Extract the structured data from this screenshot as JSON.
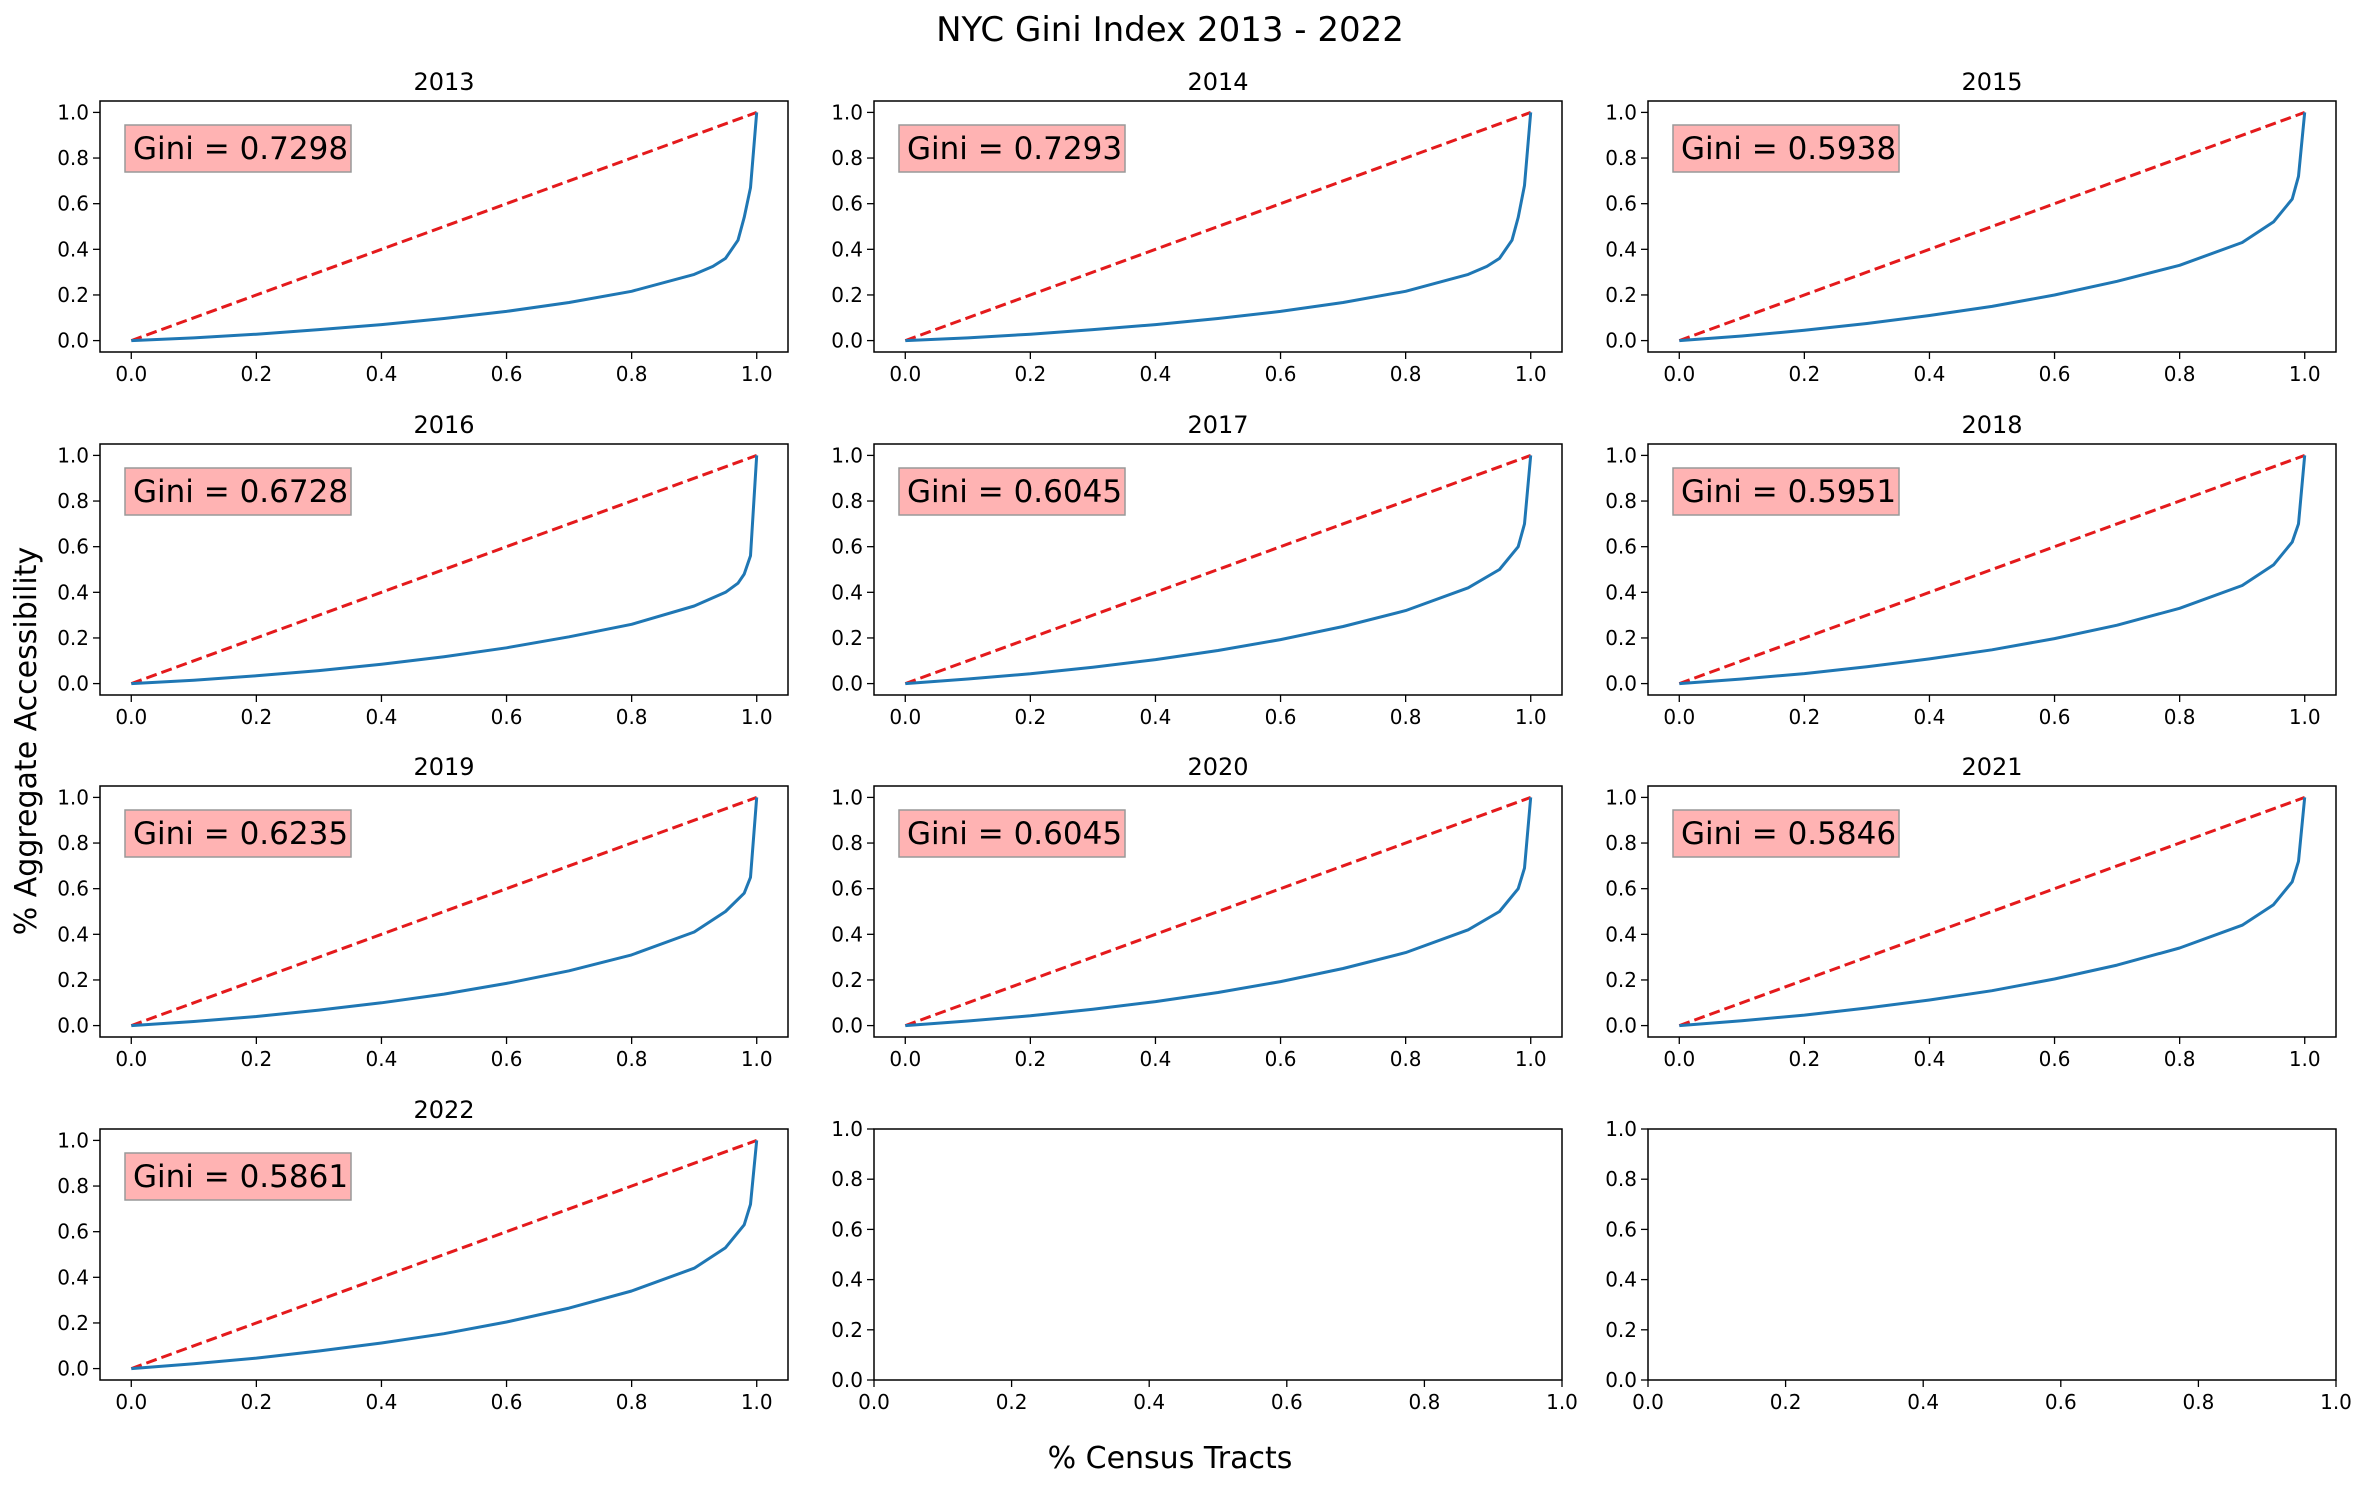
{
  "figure": {
    "title": "NYC Gini Index 2013 - 2022",
    "xlabel": "% Census Tracts",
    "ylabel": "% Aggregate Accessibility"
  },
  "colors": {
    "lorenz_curve": "#1f77b4",
    "equality_line": "#e41a1c",
    "gini_box_fill": "#ffb3b3",
    "gini_box_edge": "#999999",
    "axes": "#000000"
  },
  "chart_data": [
    {
      "type": "line",
      "title": "2013",
      "annotation": "Gini = 0.7298",
      "xlim": [
        -0.05,
        1.05
      ],
      "ylim": [
        -0.05,
        1.05
      ],
      "x_ticks": [
        "0.0",
        "0.2",
        "0.4",
        "0.6",
        "0.8",
        "1.0"
      ],
      "y_ticks": [
        "0.0",
        "0.2",
        "0.4",
        "0.6",
        "0.8",
        "1.0"
      ],
      "series": [
        {
          "role": "equality",
          "style": "dashed",
          "x": [
            0,
            1
          ],
          "y": [
            0,
            1
          ]
        },
        {
          "role": "lorenz",
          "x": [
            0,
            0.1,
            0.2,
            0.3,
            0.4,
            0.5,
            0.6,
            0.7,
            0.8,
            0.9,
            0.93,
            0.95,
            0.97,
            0.98,
            0.99,
            1.0
          ],
          "y": [
            0,
            0.012,
            0.028,
            0.048,
            0.07,
            0.097,
            0.128,
            0.167,
            0.216,
            0.29,
            0.325,
            0.36,
            0.44,
            0.54,
            0.67,
            1.0
          ]
        }
      ]
    },
    {
      "type": "line",
      "title": "2014",
      "annotation": "Gini = 0.7293",
      "xlim": [
        -0.05,
        1.05
      ],
      "ylim": [
        -0.05,
        1.05
      ],
      "x_ticks": [
        "0.0",
        "0.2",
        "0.4",
        "0.6",
        "0.8",
        "1.0"
      ],
      "y_ticks": [
        "0.0",
        "0.2",
        "0.4",
        "0.6",
        "0.8",
        "1.0"
      ],
      "series": [
        {
          "role": "equality",
          "style": "dashed",
          "x": [
            0,
            1
          ],
          "y": [
            0,
            1
          ]
        },
        {
          "role": "lorenz",
          "x": [
            0,
            0.1,
            0.2,
            0.3,
            0.4,
            0.5,
            0.6,
            0.7,
            0.8,
            0.9,
            0.93,
            0.95,
            0.97,
            0.98,
            0.99,
            1.0
          ],
          "y": [
            0,
            0.012,
            0.028,
            0.048,
            0.07,
            0.097,
            0.128,
            0.167,
            0.216,
            0.29,
            0.325,
            0.36,
            0.44,
            0.54,
            0.68,
            1.0
          ]
        }
      ]
    },
    {
      "type": "line",
      "title": "2015",
      "annotation": "Gini = 0.5938",
      "xlim": [
        -0.05,
        1.05
      ],
      "ylim": [
        -0.05,
        1.05
      ],
      "x_ticks": [
        "0.0",
        "0.2",
        "0.4",
        "0.6",
        "0.8",
        "1.0"
      ],
      "y_ticks": [
        "0.0",
        "0.2",
        "0.4",
        "0.6",
        "0.8",
        "1.0"
      ],
      "series": [
        {
          "role": "equality",
          "style": "dashed",
          "x": [
            0,
            1
          ],
          "y": [
            0,
            1
          ]
        },
        {
          "role": "lorenz",
          "x": [
            0,
            0.1,
            0.2,
            0.3,
            0.4,
            0.5,
            0.6,
            0.7,
            0.8,
            0.9,
            0.95,
            0.98,
            0.99,
            1.0
          ],
          "y": [
            0,
            0.02,
            0.045,
            0.075,
            0.11,
            0.15,
            0.2,
            0.26,
            0.33,
            0.43,
            0.52,
            0.62,
            0.72,
            1.0
          ]
        }
      ]
    },
    {
      "type": "line",
      "title": "2016",
      "annotation": "Gini = 0.6728",
      "xlim": [
        -0.05,
        1.05
      ],
      "ylim": [
        -0.05,
        1.05
      ],
      "x_ticks": [
        "0.0",
        "0.2",
        "0.4",
        "0.6",
        "0.8",
        "1.0"
      ],
      "y_ticks": [
        "0.0",
        "0.2",
        "0.4",
        "0.6",
        "0.8",
        "1.0"
      ],
      "series": [
        {
          "role": "equality",
          "style": "dashed",
          "x": [
            0,
            1
          ],
          "y": [
            0,
            1
          ]
        },
        {
          "role": "lorenz",
          "x": [
            0,
            0.1,
            0.2,
            0.3,
            0.4,
            0.5,
            0.6,
            0.7,
            0.8,
            0.9,
            0.95,
            0.97,
            0.98,
            0.99,
            1.0
          ],
          "y": [
            0,
            0.015,
            0.034,
            0.057,
            0.085,
            0.118,
            0.157,
            0.205,
            0.26,
            0.34,
            0.4,
            0.44,
            0.48,
            0.56,
            1.0
          ]
        }
      ]
    },
    {
      "type": "line",
      "title": "2017",
      "annotation": "Gini = 0.6045",
      "xlim": [
        -0.05,
        1.05
      ],
      "ylim": [
        -0.05,
        1.05
      ],
      "x_ticks": [
        "0.0",
        "0.2",
        "0.4",
        "0.6",
        "0.8",
        "1.0"
      ],
      "y_ticks": [
        "0.0",
        "0.2",
        "0.4",
        "0.6",
        "0.8",
        "1.0"
      ],
      "series": [
        {
          "role": "equality",
          "style": "dashed",
          "x": [
            0,
            1
          ],
          "y": [
            0,
            1
          ]
        },
        {
          "role": "lorenz",
          "x": [
            0,
            0.1,
            0.2,
            0.3,
            0.4,
            0.5,
            0.6,
            0.7,
            0.8,
            0.9,
            0.95,
            0.98,
            0.99,
            1.0
          ],
          "y": [
            0,
            0.02,
            0.043,
            0.072,
            0.105,
            0.145,
            0.193,
            0.25,
            0.32,
            0.42,
            0.5,
            0.6,
            0.7,
            1.0
          ]
        }
      ]
    },
    {
      "type": "line",
      "title": "2018",
      "annotation": "Gini = 0.5951",
      "xlim": [
        -0.05,
        1.05
      ],
      "ylim": [
        -0.05,
        1.05
      ],
      "x_ticks": [
        "0.0",
        "0.2",
        "0.4",
        "0.6",
        "0.8",
        "1.0"
      ],
      "y_ticks": [
        "0.0",
        "0.2",
        "0.4",
        "0.6",
        "0.8",
        "1.0"
      ],
      "series": [
        {
          "role": "equality",
          "style": "dashed",
          "x": [
            0,
            1
          ],
          "y": [
            0,
            1
          ]
        },
        {
          "role": "lorenz",
          "x": [
            0,
            0.1,
            0.2,
            0.3,
            0.4,
            0.5,
            0.6,
            0.7,
            0.8,
            0.9,
            0.95,
            0.98,
            0.99,
            1.0
          ],
          "y": [
            0,
            0.02,
            0.044,
            0.074,
            0.108,
            0.148,
            0.197,
            0.256,
            0.33,
            0.43,
            0.52,
            0.62,
            0.7,
            1.0
          ]
        }
      ]
    },
    {
      "type": "line",
      "title": "2019",
      "annotation": "Gini = 0.6235",
      "xlim": [
        -0.05,
        1.05
      ],
      "ylim": [
        -0.05,
        1.05
      ],
      "x_ticks": [
        "0.0",
        "0.2",
        "0.4",
        "0.6",
        "0.8",
        "1.0"
      ],
      "y_ticks": [
        "0.0",
        "0.2",
        "0.4",
        "0.6",
        "0.8",
        "1.0"
      ],
      "series": [
        {
          "role": "equality",
          "style": "dashed",
          "x": [
            0,
            1
          ],
          "y": [
            0,
            1
          ]
        },
        {
          "role": "lorenz",
          "x": [
            0,
            0.1,
            0.2,
            0.3,
            0.4,
            0.5,
            0.6,
            0.7,
            0.8,
            0.9,
            0.95,
            0.98,
            0.99,
            1.0
          ],
          "y": [
            0,
            0.018,
            0.04,
            0.068,
            0.1,
            0.138,
            0.185,
            0.24,
            0.31,
            0.41,
            0.5,
            0.58,
            0.65,
            1.0
          ]
        }
      ]
    },
    {
      "type": "line",
      "title": "2020",
      "annotation": "Gini = 0.6045",
      "xlim": [
        -0.05,
        1.05
      ],
      "ylim": [
        -0.05,
        1.05
      ],
      "x_ticks": [
        "0.0",
        "0.2",
        "0.4",
        "0.6",
        "0.8",
        "1.0"
      ],
      "y_ticks": [
        "0.0",
        "0.2",
        "0.4",
        "0.6",
        "0.8",
        "1.0"
      ],
      "series": [
        {
          "role": "equality",
          "style": "dashed",
          "x": [
            0,
            1
          ],
          "y": [
            0,
            1
          ]
        },
        {
          "role": "lorenz",
          "x": [
            0,
            0.1,
            0.2,
            0.3,
            0.4,
            0.5,
            0.6,
            0.7,
            0.8,
            0.9,
            0.95,
            0.98,
            0.99,
            1.0
          ],
          "y": [
            0,
            0.02,
            0.043,
            0.072,
            0.105,
            0.145,
            0.193,
            0.25,
            0.32,
            0.42,
            0.5,
            0.6,
            0.69,
            1.0
          ]
        }
      ]
    },
    {
      "type": "line",
      "title": "2021",
      "annotation": "Gini = 0.5846",
      "xlim": [
        -0.05,
        1.05
      ],
      "ylim": [
        -0.05,
        1.05
      ],
      "x_ticks": [
        "0.0",
        "0.2",
        "0.4",
        "0.6",
        "0.8",
        "1.0"
      ],
      "y_ticks": [
        "0.0",
        "0.2",
        "0.4",
        "0.6",
        "0.8",
        "1.0"
      ],
      "series": [
        {
          "role": "equality",
          "style": "dashed",
          "x": [
            0,
            1
          ],
          "y": [
            0,
            1
          ]
        },
        {
          "role": "lorenz",
          "x": [
            0,
            0.1,
            0.2,
            0.3,
            0.4,
            0.5,
            0.6,
            0.7,
            0.8,
            0.9,
            0.95,
            0.98,
            0.99,
            1.0
          ],
          "y": [
            0,
            0.021,
            0.046,
            0.077,
            0.112,
            0.153,
            0.204,
            0.265,
            0.34,
            0.44,
            0.53,
            0.63,
            0.72,
            1.0
          ]
        }
      ]
    },
    {
      "type": "line",
      "title": "2022",
      "annotation": "Gini = 0.5861",
      "xlim": [
        -0.05,
        1.05
      ],
      "ylim": [
        -0.05,
        1.05
      ],
      "x_ticks": [
        "0.0",
        "0.2",
        "0.4",
        "0.6",
        "0.8",
        "1.0"
      ],
      "y_ticks": [
        "0.0",
        "0.2",
        "0.4",
        "0.6",
        "0.8",
        "1.0"
      ],
      "series": [
        {
          "role": "equality",
          "style": "dashed",
          "x": [
            0,
            1
          ],
          "y": [
            0,
            1
          ]
        },
        {
          "role": "lorenz",
          "x": [
            0,
            0.1,
            0.2,
            0.3,
            0.4,
            0.5,
            0.6,
            0.7,
            0.8,
            0.9,
            0.95,
            0.98,
            0.99,
            1.0
          ],
          "y": [
            0,
            0.021,
            0.046,
            0.077,
            0.112,
            0.153,
            0.204,
            0.265,
            0.34,
            0.44,
            0.53,
            0.63,
            0.72,
            1.0
          ]
        }
      ]
    },
    {
      "type": "line",
      "title": "",
      "xlim": [
        0,
        1
      ],
      "ylim": [
        0,
        1
      ],
      "x_ticks": [
        "0.0",
        "0.2",
        "0.4",
        "0.6",
        "0.8",
        "1.0"
      ],
      "y_ticks": [
        "0.0",
        "0.2",
        "0.4",
        "0.6",
        "0.8",
        "1.0"
      ],
      "series": []
    },
    {
      "type": "line",
      "title": "",
      "xlim": [
        0,
        1
      ],
      "ylim": [
        0,
        1
      ],
      "x_ticks": [
        "0.0",
        "0.2",
        "0.4",
        "0.6",
        "0.8",
        "1.0"
      ],
      "y_ticks": [
        "0.0",
        "0.2",
        "0.4",
        "0.6",
        "0.8",
        "1.0"
      ],
      "series": []
    }
  ]
}
